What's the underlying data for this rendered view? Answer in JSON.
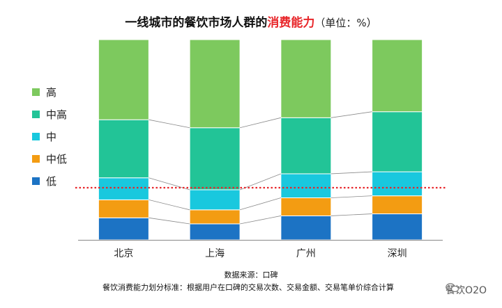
{
  "title": {
    "main": "一线城市的餐饮市场人群的",
    "accent": "消费能力",
    "unit": "（单位：%）"
  },
  "legend": [
    {
      "label": "高",
      "color": "#7dc95e"
    },
    {
      "label": "中高",
      "color": "#22c497"
    },
    {
      "label": "中",
      "color": "#19c8de"
    },
    {
      "label": "中低",
      "color": "#f39c12"
    },
    {
      "label": "低",
      "color": "#1c73c4"
    }
  ],
  "footnote": {
    "source": "数据来源：口碑",
    "standard": "餐饮消费能力划分标准：根据用户在口碑的交易次数、交易金额、交易笔单价综合计算"
  },
  "watermark": {
    "text": "餐饮O2O",
    "icon": "wechat-icon"
  },
  "chart_data": {
    "type": "bar",
    "stacked": true,
    "categories": [
      "北京",
      "上海",
      "广州",
      "深圳"
    ],
    "series": [
      {
        "name": "低",
        "color": "#1c73c4",
        "values": [
          11,
          8,
          12,
          13
        ]
      },
      {
        "name": "中低",
        "color": "#f39c12",
        "values": [
          9,
          7,
          9,
          9
        ]
      },
      {
        "name": "中",
        "color": "#19c8de",
        "values": [
          11,
          10,
          12,
          12
        ]
      },
      {
        "name": "中高",
        "color": "#22c497",
        "values": [
          29,
          31,
          28,
          30
        ]
      },
      {
        "name": "高",
        "color": "#7dc95e",
        "values": [
          40,
          44,
          39,
          36
        ]
      }
    ],
    "ylim": [
      0,
      100
    ],
    "reference_line": {
      "color": "#e8262a",
      "style": "dotted"
    },
    "connector_lines": true
  }
}
